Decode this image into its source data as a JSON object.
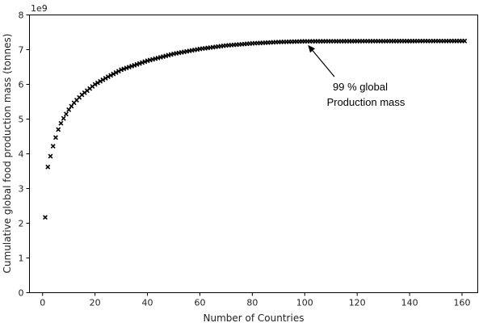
{
  "chart_data": {
    "type": "scatter",
    "title": "",
    "xlabel": "Number of Countries",
    "ylabel": "Cumulative global food production mass (tonnes)",
    "y_offset_text": "1e9",
    "y_scale": 1000000000,
    "xlim": [
      -5,
      166
    ],
    "ylim": [
      0,
      8
    ],
    "x_ticks": [
      0,
      20,
      40,
      60,
      80,
      100,
      120,
      140,
      160
    ],
    "y_ticks": [
      0,
      1,
      2,
      3,
      4,
      5,
      6,
      7,
      8
    ],
    "marker": "x",
    "marker_color": "#000000",
    "grid": false,
    "legend": "none",
    "x_range": [
      1,
      161
    ],
    "key_points": [
      {
        "x": 1,
        "y": 2.17
      },
      {
        "x": 2,
        "y": 3.62
      },
      {
        "x": 3,
        "y": 3.93
      },
      {
        "x": 4,
        "y": 4.22
      },
      {
        "x": 5,
        "y": 4.47
      },
      {
        "x": 6,
        "y": 4.7
      },
      {
        "x": 7,
        "y": 4.88
      },
      {
        "x": 8,
        "y": 5.02
      },
      {
        "x": 10,
        "y": 5.27
      },
      {
        "x": 12,
        "y": 5.47
      },
      {
        "x": 15,
        "y": 5.7
      },
      {
        "x": 20,
        "y": 6.0
      },
      {
        "x": 25,
        "y": 6.22
      },
      {
        "x": 30,
        "y": 6.42
      },
      {
        "x": 40,
        "y": 6.68
      },
      {
        "x": 50,
        "y": 6.88
      },
      {
        "x": 60,
        "y": 7.02
      },
      {
        "x": 70,
        "y": 7.12
      },
      {
        "x": 80,
        "y": 7.18
      },
      {
        "x": 90,
        "y": 7.22
      },
      {
        "x": 100,
        "y": 7.24
      },
      {
        "x": 120,
        "y": 7.245
      },
      {
        "x": 161,
        "y": 7.25
      }
    ],
    "annotations": [
      {
        "text_lines": [
          "99 % global",
          "Production mass"
        ],
        "arrow_to": {
          "x": 100,
          "y": 7.25
        }
      }
    ]
  }
}
